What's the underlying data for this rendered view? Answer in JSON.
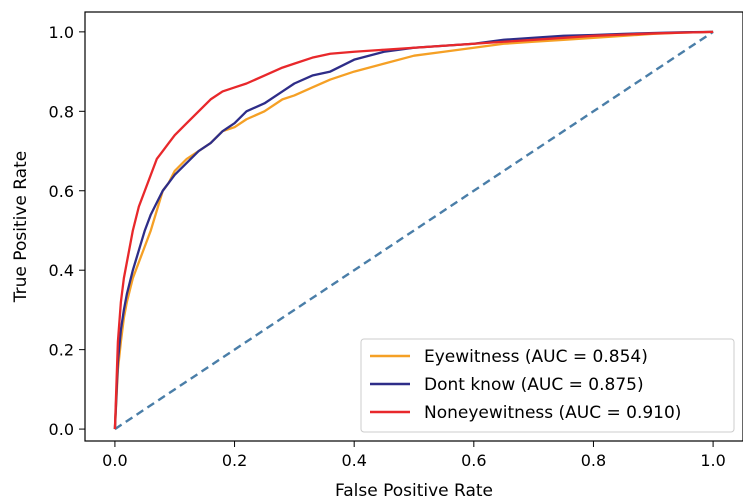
{
  "chart_data": {
    "type": "line",
    "title": "",
    "xlabel": "False Positive Rate",
    "ylabel": "True Positive Rate",
    "xlim": [
      -0.05,
      1.05
    ],
    "ylim": [
      -0.03,
      1.05
    ],
    "xticks": [
      0.0,
      0.2,
      0.4,
      0.6,
      0.8,
      1.0
    ],
    "yticks": [
      0.0,
      0.2,
      0.4,
      0.6,
      0.8,
      1.0
    ],
    "xtick_labels": [
      "0.0",
      "0.2",
      "0.4",
      "0.6",
      "0.8",
      "1.0"
    ],
    "ytick_labels": [
      "0.0",
      "0.2",
      "0.4",
      "0.6",
      "0.8",
      "1.0"
    ],
    "grid": false,
    "legend_position": "bottom-right",
    "series": [
      {
        "name": "Eyewitness (AUC =  0.854)",
        "color": "#f5a025",
        "style": "solid",
        "x": [
          0.0,
          0.005,
          0.01,
          0.015,
          0.02,
          0.03,
          0.04,
          0.05,
          0.06,
          0.07,
          0.08,
          0.09,
          0.1,
          0.12,
          0.14,
          0.16,
          0.18,
          0.2,
          0.22,
          0.25,
          0.28,
          0.3,
          0.33,
          0.36,
          0.4,
          0.45,
          0.5,
          0.55,
          0.6,
          0.65,
          0.7,
          0.75,
          0.8,
          0.85,
          0.9,
          0.95,
          1.0
        ],
        "y": [
          0.0,
          0.15,
          0.22,
          0.28,
          0.32,
          0.38,
          0.42,
          0.46,
          0.5,
          0.55,
          0.6,
          0.62,
          0.65,
          0.68,
          0.7,
          0.72,
          0.75,
          0.76,
          0.78,
          0.8,
          0.83,
          0.84,
          0.86,
          0.88,
          0.9,
          0.92,
          0.94,
          0.95,
          0.96,
          0.97,
          0.975,
          0.98,
          0.985,
          0.99,
          0.995,
          0.998,
          1.0
        ]
      },
      {
        "name": "Dont know (AUC =  0.875)",
        "color": "#2e2d88",
        "style": "solid",
        "x": [
          0.0,
          0.005,
          0.01,
          0.015,
          0.02,
          0.03,
          0.04,
          0.05,
          0.06,
          0.07,
          0.08,
          0.09,
          0.1,
          0.12,
          0.14,
          0.16,
          0.18,
          0.2,
          0.22,
          0.25,
          0.28,
          0.3,
          0.33,
          0.36,
          0.4,
          0.45,
          0.5,
          0.55,
          0.6,
          0.65,
          0.7,
          0.75,
          0.8,
          0.85,
          0.9,
          0.95,
          1.0
        ],
        "y": [
          0.0,
          0.17,
          0.25,
          0.3,
          0.34,
          0.4,
          0.45,
          0.5,
          0.54,
          0.57,
          0.6,
          0.62,
          0.64,
          0.67,
          0.7,
          0.72,
          0.75,
          0.77,
          0.8,
          0.82,
          0.85,
          0.87,
          0.89,
          0.9,
          0.93,
          0.95,
          0.96,
          0.965,
          0.97,
          0.98,
          0.985,
          0.99,
          0.992,
          0.995,
          0.997,
          0.999,
          1.0
        ]
      },
      {
        "name": "Noneyewitness (AUC =  0.910)",
        "color": "#e8282b",
        "style": "solid",
        "x": [
          0.0,
          0.005,
          0.01,
          0.015,
          0.02,
          0.03,
          0.04,
          0.05,
          0.06,
          0.07,
          0.08,
          0.09,
          0.1,
          0.12,
          0.14,
          0.16,
          0.18,
          0.2,
          0.22,
          0.25,
          0.28,
          0.3,
          0.33,
          0.36,
          0.4,
          0.45,
          0.5,
          0.55,
          0.6,
          0.65,
          0.7,
          0.75,
          0.8,
          0.85,
          0.9,
          0.95,
          1.0
        ],
        "y": [
          0.0,
          0.22,
          0.32,
          0.38,
          0.42,
          0.5,
          0.56,
          0.6,
          0.64,
          0.68,
          0.7,
          0.72,
          0.74,
          0.77,
          0.8,
          0.83,
          0.85,
          0.86,
          0.87,
          0.89,
          0.91,
          0.92,
          0.935,
          0.945,
          0.95,
          0.955,
          0.96,
          0.965,
          0.97,
          0.975,
          0.98,
          0.985,
          0.99,
          0.993,
          0.996,
          0.998,
          1.0
        ]
      },
      {
        "name": "",
        "color": "#4a7ea8",
        "style": "dashed",
        "x": [
          0.0,
          1.0
        ],
        "y": [
          0.0,
          1.0
        ]
      }
    ]
  }
}
